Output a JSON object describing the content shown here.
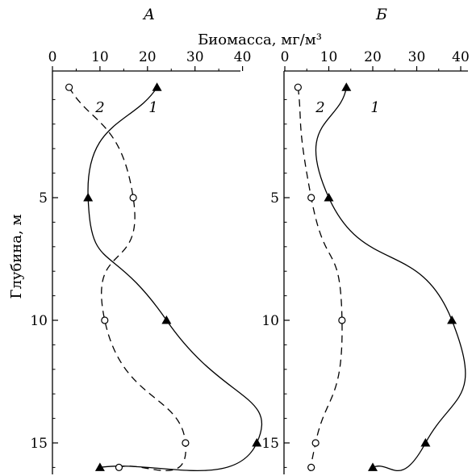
{
  "chart_data": [
    {
      "type": "line",
      "panel_label": "А",
      "x_ticks": [
        "0",
        "10",
        "20",
        "30",
        "40"
      ],
      "y_ticks": [
        "5",
        "10",
        "15"
      ],
      "xlim": [
        0,
        44
      ],
      "ylim": [
        0,
        16
      ],
      "x_axis_position": "top",
      "y_axis_inverted": true,
      "series": [
        {
          "name": "1",
          "marker": "filled-triangle",
          "line_style": "solid",
          "depth": [
            0.5,
            5,
            10,
            15,
            16
          ],
          "biomass": [
            22,
            7.5,
            24,
            43,
            10
          ]
        },
        {
          "name": "2",
          "marker": "open-circle",
          "line_style": "dashed",
          "depth": [
            0.5,
            5,
            10,
            15,
            16
          ],
          "biomass": [
            3.5,
            17,
            11,
            28,
            14
          ]
        }
      ]
    },
    {
      "type": "line",
      "panel_label": "Б",
      "x_ticks": [
        "0",
        "10",
        "20",
        "30",
        "40"
      ],
      "y_ticks": [
        "5",
        "10",
        "15"
      ],
      "xlim": [
        0,
        40
      ],
      "ylim": [
        0,
        16
      ],
      "x_axis_position": "top",
      "y_axis_inverted": true,
      "series": [
        {
          "name": "1",
          "marker": "filled-triangle",
          "line_style": "solid",
          "depth": [
            0.5,
            5,
            10,
            15,
            16
          ],
          "biomass": [
            14,
            10,
            38,
            32,
            20
          ]
        },
        {
          "name": "2",
          "marker": "open-circle",
          "line_style": "dashed",
          "depth": [
            0.5,
            5,
            10,
            15,
            16
          ],
          "biomass": [
            3,
            6,
            13,
            7,
            6
          ]
        }
      ]
    }
  ],
  "shared": {
    "x_axis_title": "Биомасса, мг/м³",
    "y_axis_title": "Глубина, м"
  }
}
